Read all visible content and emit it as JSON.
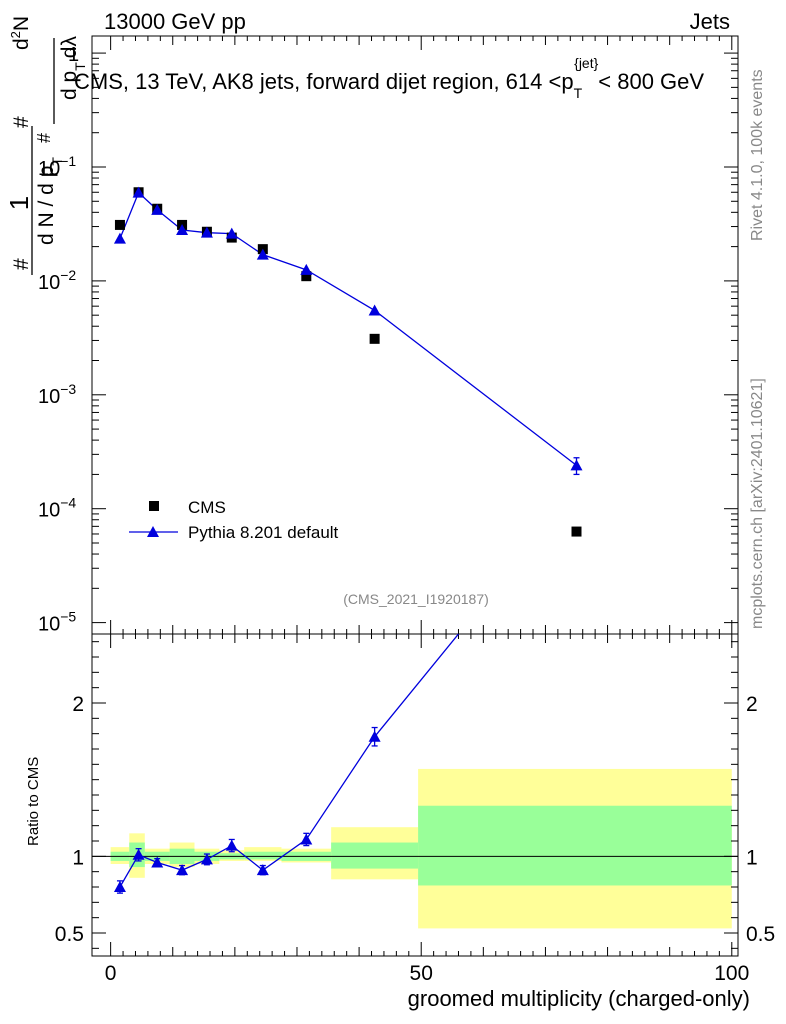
{
  "header": {
    "left": "13000 GeV pp",
    "right": "Jets"
  },
  "plot_title": {
    "prefix": "CMS, 13 TeV, AK8 jets, forward dijet region, 614 <p",
    "sub": "T",
    "sup": "{jet}",
    "suffix": "< 800 GeV"
  },
  "side": {
    "rivet": "Rivet 4.1.0,  100k events",
    "mcplots": "mcplots.cern.ch [arXiv:2401.10621]"
  },
  "watermark": "(CMS_2021_I1920187)",
  "legend": {
    "data_label": "CMS",
    "mc_label": "Pythia 8.201 default"
  },
  "colors": {
    "data": "#000000",
    "mc": "#0000dd",
    "band_inner": "#99ff99",
    "band_outer": "#ffff99"
  },
  "chart_data": {
    "type": "scatter",
    "xlabel": "groomed multiplicity (charged-only)",
    "ylabel_main": "1 / (dN / dp_T) · d²N / (dp_T dλ)",
    "ylabel_main_parts": {
      "num": "1",
      "den": "d N / d p",
      "den_sub": "T",
      "den_hash": "#",
      "den_hash2": "#",
      "r_num": "d",
      "r_num_sup": "2",
      "r_num_n": "N",
      "r_den": "d p",
      "r_den_sub": "T",
      "r_den2": "dλ",
      "r_hash": "#"
    },
    "ylabel_ratio": "Ratio to CMS",
    "xlim": [
      -3,
      101
    ],
    "ylim_main_log10": [
      -5.1,
      0.15
    ],
    "ylim_ratio": [
      0.35,
      2.45
    ],
    "x_ticks": [
      {
        "value": 0,
        "label": "0"
      },
      {
        "value": 50,
        "label": "50"
      },
      {
        "value": 100,
        "label": "100"
      }
    ],
    "y_ticks_main": [
      {
        "exp": -5,
        "label_base": "10",
        "label_exp": "−5"
      },
      {
        "exp": -4,
        "label_base": "10",
        "label_exp": "−4"
      },
      {
        "exp": -3,
        "label_base": "10",
        "label_exp": "−3"
      },
      {
        "exp": -2,
        "label_base": "10",
        "label_exp": "−2"
      },
      {
        "exp": -1,
        "label_base": "10",
        "label_exp": "−1"
      },
      {
        "exp": 0,
        "label_base": "1",
        "label_exp": ""
      }
    ],
    "y_ticks_ratio": [
      {
        "value": 0.5,
        "label": "0.5"
      },
      {
        "value": 1,
        "label": "1"
      },
      {
        "value": 2,
        "label": "2"
      }
    ],
    "series": [
      {
        "name": "CMS",
        "x": [
          1.5,
          4.5,
          7.5,
          11.5,
          15.5,
          19.5,
          24.5,
          31.5,
          42.5,
          75
        ],
        "y": [
          0.031,
          0.06,
          0.043,
          0.031,
          0.027,
          0.024,
          0.019,
          0.011,
          0.0031,
          6.3e-05
        ]
      },
      {
        "name": "Pythia 8.201 default",
        "x": [
          1.5,
          4.5,
          7.5,
          11.5,
          15.5,
          19.5,
          24.5,
          31.5,
          42.5,
          75
        ],
        "y": [
          0.0235,
          0.0595,
          0.042,
          0.028,
          0.0265,
          0.026,
          0.017,
          0.0125,
          0.0055,
          0.00024
        ],
        "yerr": [
          0,
          0,
          0,
          0,
          0,
          0,
          0,
          0,
          0,
          4e-05
        ]
      }
    ],
    "ratio": {
      "x": [
        1.5,
        4.5,
        7.5,
        11.5,
        15.5,
        19.5,
        24.5,
        31.5,
        42.5
      ],
      "y": [
        0.8,
        1.01,
        0.96,
        0.91,
        0.98,
        1.07,
        0.91,
        1.11,
        1.78
      ],
      "err": [
        0.04,
        0.04,
        0.025,
        0.03,
        0.035,
        0.04,
        0.03,
        0.04,
        0.06
      ],
      "line_exit": {
        "x": 56,
        "y": 2.45
      }
    },
    "bands": [
      {
        "x0": 0,
        "x1": 3,
        "inner": [
          0.97,
          1.03
        ],
        "outer": [
          0.95,
          1.06
        ]
      },
      {
        "x0": 3,
        "x1": 5.5,
        "inner": [
          0.93,
          1.09
        ],
        "outer": [
          0.86,
          1.15
        ]
      },
      {
        "x0": 5.5,
        "x1": 9.5,
        "inner": [
          0.97,
          1.03
        ],
        "outer": [
          0.95,
          1.05
        ]
      },
      {
        "x0": 9.5,
        "x1": 13.5,
        "inner": [
          0.95,
          1.05
        ],
        "outer": [
          0.93,
          1.09
        ]
      },
      {
        "x0": 13.5,
        "x1": 17.5,
        "inner": [
          0.97,
          1.03
        ],
        "outer": [
          0.95,
          1.05
        ]
      },
      {
        "x0": 17.5,
        "x1": 21.5,
        "inner": [
          0.98,
          1.02
        ],
        "outer": [
          0.97,
          1.04
        ]
      },
      {
        "x0": 21.5,
        "x1": 27.5,
        "inner": [
          0.98,
          1.03
        ],
        "outer": [
          0.97,
          1.06
        ]
      },
      {
        "x0": 27.5,
        "x1": 35.5,
        "inner": [
          0.97,
          1.03
        ],
        "outer": [
          0.96,
          1.05
        ]
      },
      {
        "x0": 35.5,
        "x1": 49.5,
        "inner": [
          0.92,
          1.09
        ],
        "outer": [
          0.85,
          1.19
        ]
      },
      {
        "x0": 49.5,
        "x1": 100,
        "inner": [
          0.81,
          1.33
        ],
        "outer": [
          0.53,
          1.57
        ]
      }
    ]
  }
}
